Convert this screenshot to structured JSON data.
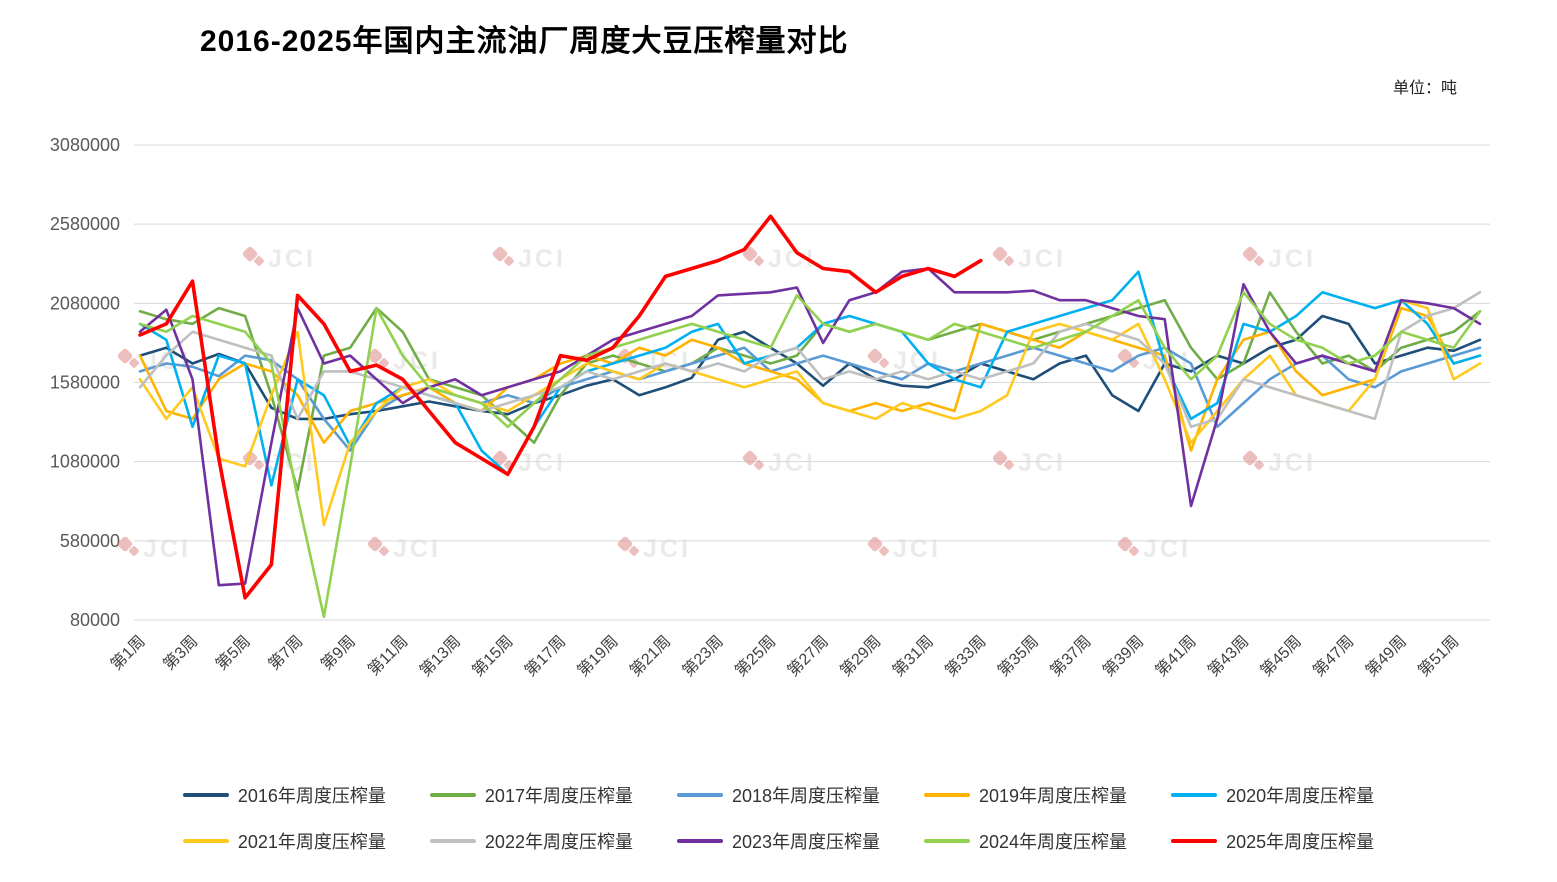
{
  "header": {
    "title": "2016-2025年国内主流油厂周度大豆压榨量对比",
    "unit_label": "单位：吨"
  },
  "watermark": {
    "text": "JCI"
  },
  "chart_data": {
    "type": "line",
    "title": "2016-2025年国内主流油厂周度大豆压榨量对比",
    "unit": "吨",
    "xlabel": "",
    "ylabel": "",
    "grid": true,
    "legend_position": "bottom",
    "ylim": [
      80000,
      3080000
    ],
    "y_ticks": [
      80000,
      580000,
      1080000,
      1580000,
      2080000,
      2580000,
      3080000
    ],
    "x_tick_step": 2,
    "categories": [
      "第1周",
      "第2周",
      "第3周",
      "第4周",
      "第5周",
      "第6周",
      "第7周",
      "第8周",
      "第9周",
      "第10周",
      "第11周",
      "第12周",
      "第13周",
      "第14周",
      "第15周",
      "第16周",
      "第17周",
      "第18周",
      "第19周",
      "第20周",
      "第21周",
      "第22周",
      "第23周",
      "第24周",
      "第25周",
      "第26周",
      "第27周",
      "第28周",
      "第29周",
      "第30周",
      "第31周",
      "第32周",
      "第33周",
      "第34周",
      "第35周",
      "第36周",
      "第37周",
      "第38周",
      "第39周",
      "第40周",
      "第41周",
      "第42周",
      "第43周",
      "第44周",
      "第45周",
      "第46周",
      "第47周",
      "第48周",
      "第49周",
      "第50周",
      "第51周",
      "第52周"
    ],
    "series": [
      {
        "name": "2016年周度压榨量",
        "color": "#1F4E79",
        "values": [
          1750000,
          1800000,
          1700000,
          1760000,
          1700000,
          1420000,
          1350000,
          1350000,
          1380000,
          1400000,
          1430000,
          1460000,
          1430000,
          1400000,
          1380000,
          1450000,
          1500000,
          1560000,
          1600000,
          1500000,
          1550000,
          1610000,
          1850000,
          1900000,
          1800000,
          1700000,
          1560000,
          1700000,
          1600000,
          1560000,
          1550000,
          1600000,
          1700000,
          1650000,
          1600000,
          1700000,
          1750000,
          1500000,
          1400000,
          1700000,
          1650000,
          1750000,
          1700000,
          1800000,
          1850000,
          2000000,
          1950000,
          1700000,
          1750000,
          1800000,
          1780000,
          1850000
        ]
      },
      {
        "name": "2017年周度压榨量",
        "color": "#70AD47",
        "values": [
          2030000,
          1980000,
          1950000,
          2050000,
          2000000,
          1500000,
          900000,
          1750000,
          1800000,
          2050000,
          1900000,
          1600000,
          1550000,
          1500000,
          1350000,
          1200000,
          1500000,
          1700000,
          1750000,
          1700000,
          1650000,
          1700000,
          1800000,
          1750000,
          1700000,
          1750000,
          1950000,
          1900000,
          1950000,
          1900000,
          1850000,
          1900000,
          1950000,
          1900000,
          1850000,
          1900000,
          1950000,
          2000000,
          2050000,
          2100000,
          1800000,
          1600000,
          1700000,
          2150000,
          1900000,
          1700000,
          1750000,
          1650000,
          1800000,
          1850000,
          1900000,
          2030000
        ]
      },
      {
        "name": "2018年周度压榨量",
        "color": "#5B9BD5",
        "values": [
          1650000,
          1700000,
          1680000,
          1620000,
          1750000,
          1720000,
          1600000,
          1350000,
          1150000,
          1400000,
          1500000,
          1550000,
          1500000,
          1450000,
          1500000,
          1450000,
          1550000,
          1600000,
          1650000,
          1600000,
          1650000,
          1700000,
          1750000,
          1800000,
          1650000,
          1700000,
          1750000,
          1700000,
          1650000,
          1600000,
          1700000,
          1650000,
          1700000,
          1750000,
          1800000,
          1750000,
          1700000,
          1650000,
          1750000,
          1800000,
          1700000,
          1300000,
          1450000,
          1600000,
          1700000,
          1750000,
          1600000,
          1550000,
          1650000,
          1700000,
          1750000,
          1800000
        ]
      },
      {
        "name": "2019年周度压榨量",
        "color": "#FFB300",
        "values": [
          1750000,
          1400000,
          1350000,
          1600000,
          1700000,
          1650000,
          1500000,
          1200000,
          1400000,
          1450000,
          1500000,
          1550000,
          1450000,
          1400000,
          1550000,
          1600000,
          1700000,
          1750000,
          1700000,
          1800000,
          1750000,
          1850000,
          1800000,
          1700000,
          1650000,
          1600000,
          1450000,
          1400000,
          1450000,
          1400000,
          1450000,
          1400000,
          1950000,
          1900000,
          1850000,
          1800000,
          1900000,
          1850000,
          1800000,
          1750000,
          1150000,
          1600000,
          1850000,
          1900000,
          1650000,
          1500000,
          1550000,
          1600000,
          2050000,
          2000000,
          1700000,
          1750000
        ]
      },
      {
        "name": "2020年周度压榨量",
        "color": "#00B0F0",
        "values": [
          1950000,
          1850000,
          1300000,
          1750000,
          1700000,
          930000,
          1600000,
          1500000,
          1180000,
          1450000,
          1550000,
          1500000,
          1450000,
          1150000,
          1000000,
          1300000,
          1550000,
          1650000,
          1700000,
          1750000,
          1800000,
          1900000,
          1950000,
          1700000,
          1750000,
          1800000,
          1950000,
          2000000,
          1950000,
          1900000,
          1700000,
          1600000,
          1550000,
          1900000,
          1950000,
          2000000,
          2050000,
          2100000,
          2280000,
          1700000,
          1350000,
          1450000,
          1950000,
          1900000,
          2000000,
          2150000,
          2100000,
          2050000,
          2100000,
          1950000,
          1700000,
          1750000
        ]
      },
      {
        "name": "2021年周度压榨量",
        "color": "#FFC91F",
        "values": [
          1600000,
          1350000,
          1550000,
          1100000,
          1050000,
          1500000,
          1900000,
          680000,
          1200000,
          1400000,
          1550000,
          1600000,
          1500000,
          1450000,
          1400000,
          1500000,
          1600000,
          1700000,
          1650000,
          1600000,
          1700000,
          1650000,
          1600000,
          1550000,
          1600000,
          1650000,
          1450000,
          1400000,
          1350000,
          1450000,
          1400000,
          1350000,
          1400000,
          1500000,
          1900000,
          1950000,
          1900000,
          1850000,
          1950000,
          1600000,
          1200000,
          1400000,
          1600000,
          1750000,
          1500000,
          1450000,
          1400000,
          1600000,
          2100000,
          2050000,
          1600000,
          1700000
        ]
      },
      {
        "name": "2022年周度压榨量",
        "color": "#BFBFBF",
        "values": [
          1550000,
          1750000,
          1900000,
          1850000,
          1800000,
          1750000,
          1350000,
          1650000,
          1650000,
          1600000,
          1550000,
          1500000,
          1450000,
          1400000,
          1450000,
          1500000,
          1550000,
          1650000,
          1600000,
          1650000,
          1700000,
          1650000,
          1700000,
          1650000,
          1750000,
          1800000,
          1600000,
          1650000,
          1600000,
          1650000,
          1600000,
          1650000,
          1600000,
          1650000,
          1700000,
          1900000,
          1950000,
          1900000,
          1850000,
          1700000,
          1300000,
          1350000,
          1600000,
          1550000,
          1500000,
          1450000,
          1400000,
          1350000,
          1900000,
          2000000,
          2050000,
          2150000
        ]
      },
      {
        "name": "2023年周度压榨量",
        "color": "#7030A0",
        "values": [
          1900000,
          2040000,
          1600000,
          300000,
          310000,
          1200000,
          2050000,
          1700000,
          1750000,
          1600000,
          1450000,
          1550000,
          1600000,
          1500000,
          1550000,
          1600000,
          1650000,
          1750000,
          1850000,
          1900000,
          1950000,
          2000000,
          2130000,
          2140000,
          2150000,
          2180000,
          1830000,
          2100000,
          2150000,
          2280000,
          2300000,
          2150000,
          2150000,
          2150000,
          2160000,
          2100000,
          2100000,
          2050000,
          2000000,
          1980000,
          800000,
          1350000,
          2200000,
          1900000,
          1700000,
          1750000,
          1700000,
          1650000,
          2100000,
          2080000,
          2050000,
          1950000
        ]
      },
      {
        "name": "2024年周度压榨量",
        "color": "#92D050",
        "values": [
          1950000,
          1900000,
          2000000,
          1950000,
          1900000,
          1700000,
          850000,
          100000,
          1050000,
          2050000,
          1750000,
          1550000,
          1500000,
          1450000,
          1300000,
          1450000,
          1600000,
          1750000,
          1800000,
          1850000,
          1900000,
          1950000,
          1900000,
          1850000,
          1800000,
          2130000,
          1950000,
          1900000,
          1950000,
          1900000,
          1850000,
          1950000,
          1900000,
          1850000,
          1800000,
          1850000,
          1900000,
          2000000,
          2100000,
          1800000,
          1600000,
          1750000,
          2150000,
          1950000,
          1850000,
          1800000,
          1700000,
          1750000,
          1900000,
          1850000,
          1800000,
          2030000
        ]
      },
      {
        "name": "2025年周度压榨量",
        "color": "#FF0000",
        "values": [
          1880000,
          1950000,
          2220000,
          1100000,
          220000,
          430000,
          2130000,
          1950000,
          1650000,
          1690000,
          1600000,
          1400000,
          1200000,
          1100000,
          1000000,
          1300000,
          1750000,
          1720000,
          1800000,
          2000000,
          2250000,
          2300000,
          2350000,
          2420000,
          2630000,
          2400000,
          2300000,
          2280000,
          2150000,
          2250000,
          2300000,
          2250000,
          2350000
        ]
      }
    ]
  }
}
